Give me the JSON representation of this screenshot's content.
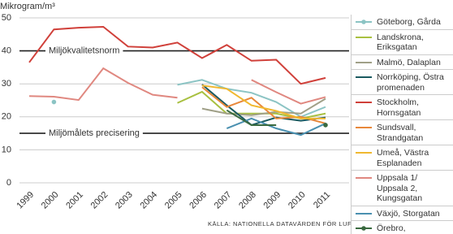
{
  "chart_data": {
    "type": "line",
    "y_label": "Mikrogram/m³",
    "source": "KÄLLA: NATIONELLA DATAVÄRDEN FÖR LUFT",
    "categories": [
      "1999",
      "2000",
      "2001",
      "2002",
      "2003",
      "2004",
      "2005",
      "2006",
      "2007",
      "2008",
      "2009",
      "2010",
      "2011"
    ],
    "ylim": [
      0,
      50
    ],
    "yticks": [
      0,
      10,
      20,
      30,
      40,
      50
    ],
    "grid": true,
    "reference_lines": [
      {
        "value": 40,
        "label": "Miljökvalitetsnorm"
      },
      {
        "value": 15,
        "label": "Miljömålets precisering"
      }
    ],
    "legend": "right",
    "series": [
      {
        "name": "Göteborg, Gårda",
        "color": "#8cc4c4",
        "marker": "dot",
        "values": [
          null,
          24.5,
          null,
          null,
          null,
          null,
          29.7,
          31.2,
          28.5,
          27.3,
          24.5,
          20,
          23
        ]
      },
      {
        "name": "Landskrona, Eriksgatan",
        "color": "#a8c040",
        "values": [
          null,
          null,
          null,
          null,
          null,
          null,
          24.2,
          27.6,
          21,
          21,
          21,
          19.5,
          21
        ]
      },
      {
        "name": "Malmö, Dalaplan",
        "color": "#a0a088",
        "values": [
          null,
          null,
          null,
          null,
          null,
          null,
          null,
          22.5,
          21,
          20.5,
          21.5,
          21,
          25.5
        ]
      },
      {
        "name": "Norrköping, Östra promenaden",
        "color": "#1a5a60",
        "values": [
          null,
          null,
          null,
          null,
          null,
          null,
          null,
          29.8,
          23.5,
          17.5,
          19.8,
          18.8,
          19.8
        ]
      },
      {
        "name": "Stockholm, Hornsgatan",
        "color": "#d0403a",
        "values": [
          36.5,
          46.5,
          47,
          47.3,
          41.3,
          41,
          42.5,
          37.8,
          41.8,
          37,
          37.3,
          30,
          31.8
        ]
      },
      {
        "name": "Sundsvall, Strandgatan",
        "color": "#e8883a",
        "values": [
          null,
          null,
          null,
          null,
          null,
          null,
          null,
          29,
          23,
          25.8,
          19.5,
          20,
          18
        ]
      },
      {
        "name": "Umeå, Västra Esplanaden",
        "color": "#f0b830",
        "values": [
          null,
          null,
          null,
          null,
          null,
          null,
          null,
          29.5,
          28.5,
          23.5,
          21.8,
          19.5,
          19.5
        ]
      },
      {
        "name": "Uppsala 1/ Uppsala 2, Kungsgatan",
        "color": "#e08880",
        "values": [
          26.3,
          26.1,
          25.1,
          34.7,
          30.3,
          26.7,
          25.8,
          null,
          null,
          31.2,
          27.5,
          24,
          26
        ]
      },
      {
        "name": "Växjö, Storgatan",
        "color": "#4a90b0",
        "values": [
          null,
          null,
          null,
          null,
          null,
          null,
          null,
          null,
          16.5,
          19.5,
          16.5,
          14.5,
          18
        ]
      },
      {
        "name": "Örebro,",
        "color": "#3a6a40",
        "marker": "dot",
        "values": [
          null,
          null,
          null,
          null,
          null,
          null,
          null,
          null,
          22,
          17.5,
          17.5,
          null,
          17.5
        ]
      }
    ]
  }
}
